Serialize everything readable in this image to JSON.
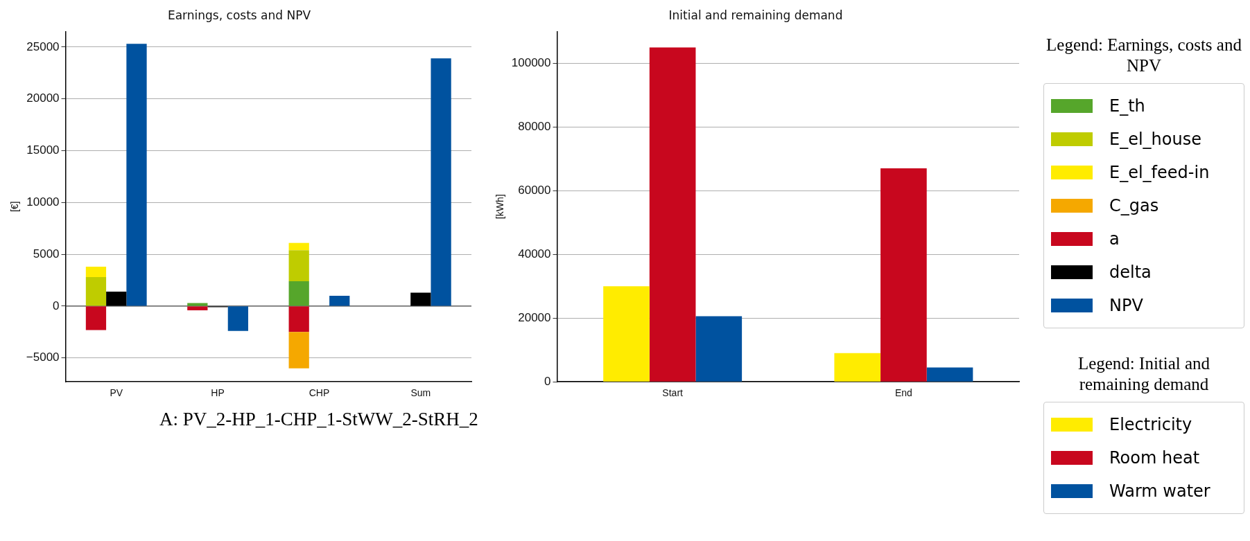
{
  "chart_data": [
    {
      "type": "bar",
      "title": "Earnings, costs and NPV",
      "ylabel": "[€]",
      "legend_title": "Legend: Earnings, costs and NPV",
      "categories": [
        "PV",
        "HP",
        "CHP",
        "Sum"
      ],
      "series": [
        {
          "name": "E_th",
          "color": "#56a62b",
          "values": [
            null,
            300,
            2400,
            null
          ],
          "base": [
            null,
            0,
            0,
            null
          ]
        },
        {
          "name": "E_el_house",
          "color": "#bfcc00",
          "values": [
            2800,
            null,
            3000,
            null
          ],
          "base": [
            0,
            null,
            2400,
            null
          ]
        },
        {
          "name": "E_el_feed-in",
          "color": "#ffec00",
          "values": [
            1000,
            null,
            700,
            null
          ],
          "base": [
            2800,
            null,
            5400,
            null
          ]
        },
        {
          "name": "C_gas",
          "color": "#f5a800",
          "values": [
            null,
            null,
            -3500,
            null
          ],
          "base": [
            null,
            null,
            -2500,
            null
          ]
        },
        {
          "name": "a",
          "color": "#c8071e",
          "values": [
            -2300,
            -400,
            -2500,
            null
          ],
          "base": [
            0,
            0,
            0,
            null
          ]
        },
        {
          "name": "delta",
          "color": "#000000",
          "values": [
            1400,
            -100,
            null,
            1300
          ]
        },
        {
          "name": "NPV",
          "color": "#00529f",
          "values": [
            25300,
            -2400,
            1000,
            23900
          ]
        }
      ],
      "ylim": [
        -7300,
        26500
      ],
      "yticks": [
        -5000,
        0,
        5000,
        10000,
        15000,
        20000,
        25000
      ],
      "grid": "y",
      "legend": "right",
      "annotations": [
        "A: PV_2-HP_1-CHP_1-StWW_2-StRH_2"
      ]
    },
    {
      "type": "bar",
      "title": "Initial and remaining demand",
      "ylabel": "[kWh]",
      "legend_title": "Legend: Initial and remaining demand",
      "categories": [
        "Start",
        "End"
      ],
      "series": [
        {
          "name": "Electricity",
          "color": "#ffec00",
          "values": [
            30000,
            9000
          ]
        },
        {
          "name": "Room heat",
          "color": "#c8071e",
          "values": [
            105000,
            67000
          ]
        },
        {
          "name": "Warm water",
          "color": "#00529f",
          "values": [
            20600,
            4500
          ]
        }
      ],
      "ylim": [
        0,
        110000
      ],
      "yticks": [
        0,
        20000,
        40000,
        60000,
        80000,
        100000
      ],
      "grid": "y",
      "legend": "right"
    }
  ]
}
